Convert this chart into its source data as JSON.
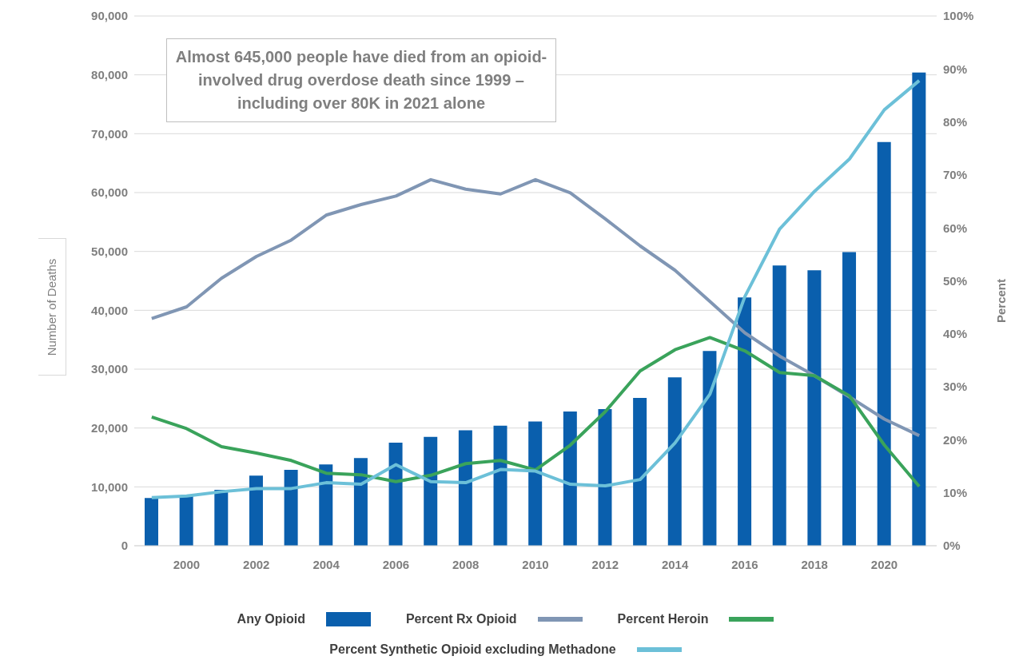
{
  "chart_data": {
    "type": "bar",
    "ylabel": "Number of Deaths",
    "y2label": "Percent",
    "annotations": [
      "Almost 645,000 people have died from an opioid-involved drug overdose death since 1999 – including over 80K in 2021 alone"
    ],
    "x": [
      1999,
      2000,
      2001,
      2002,
      2003,
      2004,
      2005,
      2006,
      2007,
      2008,
      2009,
      2010,
      2011,
      2012,
      2013,
      2014,
      2015,
      2016,
      2017,
      2018,
      2019,
      2020,
      2021
    ],
    "xlim": [
      1998.5,
      2021.5
    ],
    "xticks": [
      2000,
      2002,
      2004,
      2006,
      2008,
      2010,
      2012,
      2014,
      2016,
      2018,
      2020
    ],
    "ylim": [
      0,
      90000
    ],
    "yticks": [
      0,
      {
        "value": 10000,
        "label": "10,000"
      },
      {
        "value": 20000,
        "label": "20,000"
      },
      {
        "value": 30000,
        "label": "30,000"
      },
      {
        "value": 40000,
        "label": "40,000"
      },
      {
        "value": 50000,
        "label": "50,000"
      },
      {
        "value": 60000,
        "label": "60,000"
      },
      {
        "value": 70000,
        "label": "70,000"
      },
      {
        "value": 80000,
        "label": "80,000"
      },
      {
        "value": 90000,
        "label": "90,000"
      }
    ],
    "y2lim": [
      0,
      100
    ],
    "y2ticks": [
      {
        "value": 0,
        "label": "0%"
      },
      {
        "value": 10,
        "label": "10%"
      },
      {
        "value": 20,
        "label": "20%"
      },
      {
        "value": 30,
        "label": "30%"
      },
      {
        "value": 40,
        "label": "40%"
      },
      {
        "value": 50,
        "label": "50%"
      },
      {
        "value": 60,
        "label": "60%"
      },
      {
        "value": 70,
        "label": "70%"
      },
      {
        "value": 80,
        "label": "80%"
      },
      {
        "value": 90,
        "label": "90%"
      },
      {
        "value": 100,
        "label": "100%"
      }
    ],
    "grid": "y",
    "legend": "bottom",
    "marker": "none",
    "series": [
      {
        "name": "Any Opioid",
        "color": "#0a5fad",
        "values": [
          8100,
          8400,
          9500,
          11900,
          12900,
          13800,
          14900,
          17500,
          18500,
          19600,
          20400,
          21100,
          22800,
          23200,
          25100,
          28600,
          33100,
          42200,
          47600,
          46800,
          49900,
          68600,
          80400
        ]
      },
      {
        "name": "Percent Rx Opioid",
        "type": "line",
        "axis": "y2",
        "color": "#8096b4",
        "values": [
          42.9,
          45.1,
          50.5,
          54.6,
          57.7,
          62.4,
          64.4,
          66.0,
          69.1,
          67.3,
          66.4,
          69.1,
          66.6,
          61.7,
          56.6,
          52.0,
          46.1,
          40.2,
          35.8,
          32.1,
          28.1,
          23.9,
          20.8
        ]
      },
      {
        "name": "Percent Heroin",
        "type": "line",
        "axis": "y2",
        "color": "#3aa35b",
        "values": [
          24.3,
          22.1,
          18.7,
          17.5,
          16.1,
          13.7,
          13.4,
          12.1,
          13.3,
          15.5,
          16.1,
          14.3,
          19.0,
          25.3,
          33.0,
          37.0,
          39.3,
          36.8,
          32.7,
          32.1,
          28.3,
          19.0,
          11.2
        ]
      },
      {
        "name": "Percent Synthetic Opioid excluding Methadone",
        "type": "line",
        "axis": "y2",
        "color": "#6cc0d8",
        "values": [
          9.1,
          9.4,
          10.2,
          10.8,
          10.8,
          11.9,
          11.6,
          15.3,
          12.1,
          11.9,
          14.4,
          14.1,
          11.6,
          11.3,
          12.5,
          19.4,
          28.6,
          47.0,
          59.8,
          66.9,
          73.0,
          82.3,
          87.8
        ]
      }
    ]
  }
}
